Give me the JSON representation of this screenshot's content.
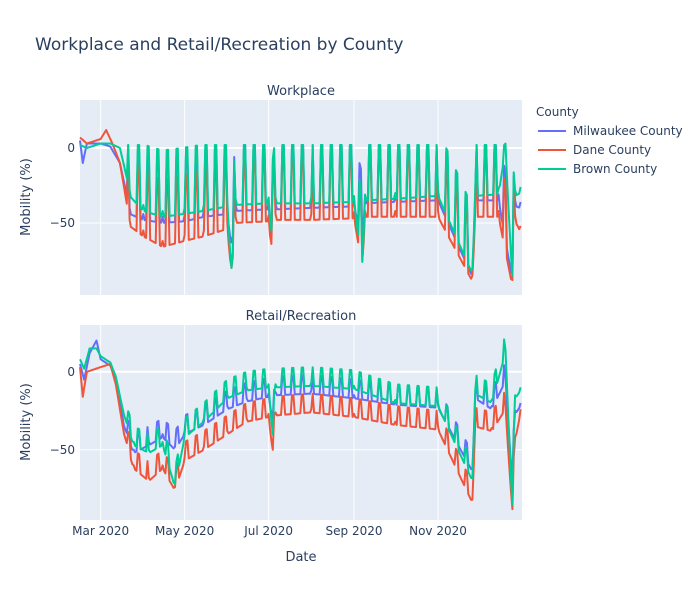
{
  "chart_data": {
    "type": "line",
    "title": "Workplace and Retail/Recreation by County",
    "xlabel": "Date",
    "ylabel": "Mobility (%)",
    "x_range": [
      "2020-02-15",
      "2021-01-01"
    ],
    "x_ticks": [
      {
        "date": "2020-03-01",
        "label": "Mar 2020"
      },
      {
        "date": "2020-05-01",
        "label": "May 2020"
      },
      {
        "date": "2020-07-01",
        "label": "Jul 2020"
      },
      {
        "date": "2020-09-01",
        "label": "Sep 2020"
      },
      {
        "date": "2020-11-01",
        "label": "Nov 2020"
      }
    ],
    "legend": {
      "title": "County",
      "placement": "right",
      "entries": [
        {
          "name": "Milwaukee County",
          "color": "#636efa"
        },
        {
          "name": "Dane County",
          "color": "#EF553B"
        },
        {
          "name": "Brown County",
          "color": "#00cc96"
        }
      ]
    },
    "grid": true,
    "subplots": [
      {
        "title": "Workplace",
        "ylim": [
          -98,
          32
        ],
        "y_ticks": [
          0,
          -50
        ],
        "series": [
          {
            "name": "Milwaukee County",
            "color": "#636efa",
            "points": [
              [
                "2020-02-15",
                5
              ],
              [
                "2020-02-17",
                -10
              ],
              [
                "2020-02-20",
                3
              ],
              [
                "2020-03-01",
                3
              ],
              [
                "2020-03-08",
                1
              ],
              [
                "2020-03-15",
                -10
              ],
              [
                "2020-03-22",
                -40
              ],
              [
                "2020-04-01",
                -44
              ],
              [
                "2020-04-15",
                -46
              ],
              [
                "2020-05-01",
                -45
              ],
              [
                "2020-05-15",
                -42
              ],
              [
                "2020-06-01",
                -40
              ],
              [
                "2020-06-04",
                -63
              ],
              [
                "2020-06-07",
                -38
              ],
              [
                "2020-07-01",
                -37
              ],
              [
                "2020-07-03",
                -60
              ],
              [
                "2020-07-06",
                -37
              ],
              [
                "2020-08-01",
                -36
              ],
              [
                "2020-09-01",
                -35
              ],
              [
                "2020-09-07",
                -58
              ],
              [
                "2020-09-09",
                -33
              ],
              [
                "2020-10-01",
                -32
              ],
              [
                "2020-11-01",
                -31
              ],
              [
                "2020-11-26",
                -82
              ],
              [
                "2020-11-28",
                -31
              ],
              [
                "2020-12-15",
                -31
              ],
              [
                "2020-12-25",
                -84
              ],
              [
                "2020-12-27",
                -35
              ],
              [
                "2020-12-31",
                -36
              ]
            ]
          },
          {
            "name": "Dane County",
            "color": "#EF553B",
            "points": [
              [
                "2020-02-15",
                7
              ],
              [
                "2020-02-20",
                3
              ],
              [
                "2020-03-01",
                6
              ],
              [
                "2020-03-05",
                12
              ],
              [
                "2020-03-10",
                2
              ],
              [
                "2020-03-15",
                -10
              ],
              [
                "2020-03-22",
                -48
              ],
              [
                "2020-04-01",
                -55
              ],
              [
                "2020-04-15",
                -62
              ],
              [
                "2020-05-01",
                -58
              ],
              [
                "2020-05-15",
                -55
              ],
              [
                "2020-06-01",
                -50
              ],
              [
                "2020-06-04",
                -80
              ],
              [
                "2020-06-07",
                -46
              ],
              [
                "2020-07-01",
                -45
              ],
              [
                "2020-07-03",
                -64
              ],
              [
                "2020-07-06",
                -44
              ],
              [
                "2020-08-01",
                -44
              ],
              [
                "2020-09-01",
                -43
              ],
              [
                "2020-09-07",
                -75
              ],
              [
                "2020-09-09",
                -42
              ],
              [
                "2020-10-01",
                -42
              ],
              [
                "2020-11-01",
                -42
              ],
              [
                "2020-11-26",
                -85
              ],
              [
                "2020-11-28",
                -42
              ],
              [
                "2020-12-15",
                -42
              ],
              [
                "2020-12-25",
                -88
              ],
              [
                "2020-12-27",
                -45
              ],
              [
                "2020-12-31",
                -52
              ]
            ]
          },
          {
            "name": "Brown County",
            "color": "#00cc96",
            "points": [
              [
                "2020-02-15",
                2
              ],
              [
                "2020-02-20",
                0
              ],
              [
                "2020-03-01",
                3
              ],
              [
                "2020-03-08",
                3
              ],
              [
                "2020-03-15",
                0
              ],
              [
                "2020-03-22",
                -28
              ],
              [
                "2020-04-01",
                -38
              ],
              [
                "2020-04-15",
                -42
              ],
              [
                "2020-05-01",
                -40
              ],
              [
                "2020-05-15",
                -38
              ],
              [
                "2020-06-01",
                -35
              ],
              [
                "2020-06-04",
                -80
              ],
              [
                "2020-06-07",
                -34
              ],
              [
                "2020-07-01",
                -33
              ],
              [
                "2020-07-03",
                -55
              ],
              [
                "2020-07-06",
                -33
              ],
              [
                "2020-08-01",
                -33
              ],
              [
                "2020-09-01",
                -32
              ],
              [
                "2020-09-07",
                -76
              ],
              [
                "2020-09-09",
                -31
              ],
              [
                "2020-10-01",
                -30
              ],
              [
                "2020-11-01",
                -28
              ],
              [
                "2020-11-26",
                -80
              ],
              [
                "2020-11-28",
                -28
              ],
              [
                "2020-12-15",
                -27
              ],
              [
                "2020-12-20",
                3
              ],
              [
                "2020-12-25",
                -85
              ],
              [
                "2020-12-27",
                -28
              ],
              [
                "2020-12-31",
                -26
              ]
            ]
          }
        ]
      },
      {
        "title": "Retail/Recreation",
        "ylim": [
          -95,
          30
        ],
        "y_ticks": [
          0,
          -50
        ],
        "series": [
          {
            "name": "Milwaukee County",
            "color": "#636efa",
            "points": [
              [
                "2020-02-15",
                5
              ],
              [
                "2020-02-18",
                -5
              ],
              [
                "2020-02-22",
                12
              ],
              [
                "2020-02-27",
                20
              ],
              [
                "2020-03-01",
                8
              ],
              [
                "2020-03-08",
                4
              ],
              [
                "2020-03-12",
                -5
              ],
              [
                "2020-03-18",
                -35
              ],
              [
                "2020-03-25",
                -50
              ],
              [
                "2020-04-05",
                -45
              ],
              [
                "2020-04-15",
                -40
              ],
              [
                "2020-04-24",
                -48
              ],
              [
                "2020-05-01",
                -38
              ],
              [
                "2020-05-15",
                -32
              ],
              [
                "2020-06-01",
                -22
              ],
              [
                "2020-06-15",
                -17
              ],
              [
                "2020-07-01",
                -14
              ],
              [
                "2020-07-04",
                -30
              ],
              [
                "2020-07-06",
                -13
              ],
              [
                "2020-08-01",
                -12
              ],
              [
                "2020-09-01",
                -15
              ],
              [
                "2020-10-01",
                -19
              ],
              [
                "2020-11-01",
                -21
              ],
              [
                "2020-11-26",
                -62
              ],
              [
                "2020-11-28",
                -15
              ],
              [
                "2020-12-10",
                -22
              ],
              [
                "2020-12-20",
                -4
              ],
              [
                "2020-12-25",
                -70
              ],
              [
                "2020-12-27",
                -25
              ],
              [
                "2020-12-31",
                -20
              ]
            ]
          },
          {
            "name": "Dane County",
            "color": "#EF553B",
            "points": [
              [
                "2020-02-15",
                3
              ],
              [
                "2020-02-17",
                -16
              ],
              [
                "2020-02-20",
                0
              ],
              [
                "2020-03-01",
                3
              ],
              [
                "2020-03-08",
                5
              ],
              [
                "2020-03-12",
                -8
              ],
              [
                "2020-03-18",
                -40
              ],
              [
                "2020-03-25",
                -60
              ],
              [
                "2020-04-05",
                -68
              ],
              [
                "2020-04-15",
                -60
              ],
              [
                "2020-04-24",
                -74
              ],
              [
                "2020-05-01",
                -55
              ],
              [
                "2020-05-15",
                -48
              ],
              [
                "2020-06-01",
                -38
              ],
              [
                "2020-06-15",
                -30
              ],
              [
                "2020-07-01",
                -27
              ],
              [
                "2020-07-04",
                -50
              ],
              [
                "2020-07-06",
                -26
              ],
              [
                "2020-08-01",
                -24
              ],
              [
                "2020-09-01",
                -27
              ],
              [
                "2020-10-01",
                -32
              ],
              [
                "2020-11-01",
                -35
              ],
              [
                "2020-11-26",
                -82
              ],
              [
                "2020-11-28",
                -33
              ],
              [
                "2020-12-10",
                -36
              ],
              [
                "2020-12-20",
                -22
              ],
              [
                "2020-12-25",
                -88
              ],
              [
                "2020-12-27",
                -42
              ],
              [
                "2020-12-31",
                -24
              ]
            ]
          },
          {
            "name": "Brown County",
            "color": "#00cc96",
            "points": [
              [
                "2020-02-15",
                8
              ],
              [
                "2020-02-18",
                2
              ],
              [
                "2020-02-22",
                15
              ],
              [
                "2020-02-27",
                15
              ],
              [
                "2020-03-01",
                10
              ],
              [
                "2020-03-08",
                6
              ],
              [
                "2020-03-12",
                -3
              ],
              [
                "2020-03-18",
                -28
              ],
              [
                "2020-03-25",
                -45
              ],
              [
                "2020-04-05",
                -50
              ],
              [
                "2020-04-15",
                -45
              ],
              [
                "2020-04-24",
                -72
              ],
              [
                "2020-05-01",
                -40
              ],
              [
                "2020-05-15",
                -30
              ],
              [
                "2020-06-01",
                -15
              ],
              [
                "2020-06-15",
                -10
              ],
              [
                "2020-07-01",
                -8
              ],
              [
                "2020-07-04",
                -40
              ],
              [
                "2020-07-06",
                -8
              ],
              [
                "2020-08-01",
                -7
              ],
              [
                "2020-09-01",
                -9
              ],
              [
                "2020-10-01",
                -18
              ],
              [
                "2020-11-01",
                -20
              ],
              [
                "2020-11-26",
                -68
              ],
              [
                "2020-11-28",
                -12
              ],
              [
                "2020-12-10",
                -18
              ],
              [
                "2020-12-20",
                14
              ],
              [
                "2020-12-25",
                -85
              ],
              [
                "2020-12-27",
                -15
              ],
              [
                "2020-12-31",
                -10
              ]
            ]
          }
        ]
      }
    ]
  }
}
